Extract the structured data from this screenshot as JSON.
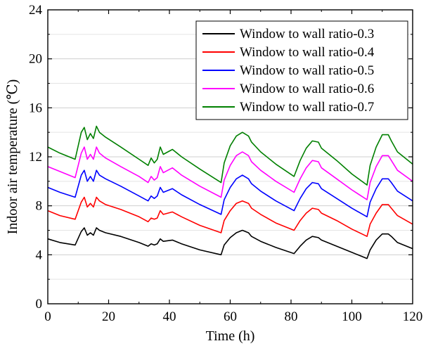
{
  "chart_data": {
    "type": "line",
    "xlabel": "Time (h)",
    "ylabel": "Indoor air temperature (℃)",
    "xlim": [
      0,
      120
    ],
    "ylim": [
      0,
      24
    ],
    "xticks": [
      "0",
      "20",
      "40",
      "60",
      "80",
      "100",
      "120"
    ],
    "yticks": [
      "0",
      "4",
      "8",
      "12",
      "16",
      "20",
      "24"
    ],
    "minor_gridlines": true,
    "legend_position": "top-right",
    "series": [
      {
        "name": "Window to wall ratio-0.3",
        "color": "#000000",
        "points": [
          [
            0,
            5.3
          ],
          [
            4,
            5.0
          ],
          [
            9,
            4.8
          ],
          [
            11,
            5.9
          ],
          [
            12,
            6.2
          ],
          [
            13,
            5.6
          ],
          [
            14,
            5.8
          ],
          [
            15,
            5.6
          ],
          [
            16,
            6.2
          ],
          [
            17,
            6.0
          ],
          [
            19,
            5.8
          ],
          [
            24,
            5.5
          ],
          [
            30,
            5.0
          ],
          [
            33,
            4.7
          ],
          [
            34,
            4.9
          ],
          [
            35,
            4.8
          ],
          [
            36,
            4.9
          ],
          [
            37,
            5.3
          ],
          [
            38,
            5.1
          ],
          [
            41,
            5.2
          ],
          [
            44,
            4.9
          ],
          [
            50,
            4.4
          ],
          [
            57,
            4.0
          ],
          [
            58,
            4.8
          ],
          [
            60,
            5.4
          ],
          [
            62,
            5.8
          ],
          [
            64,
            6.0
          ],
          [
            66,
            5.8
          ],
          [
            67,
            5.5
          ],
          [
            70,
            5.1
          ],
          [
            75,
            4.6
          ],
          [
            81,
            4.1
          ],
          [
            83,
            4.7
          ],
          [
            85,
            5.2
          ],
          [
            87,
            5.5
          ],
          [
            89,
            5.4
          ],
          [
            90,
            5.2
          ],
          [
            95,
            4.7
          ],
          [
            100,
            4.2
          ],
          [
            105,
            3.7
          ],
          [
            106,
            4.4
          ],
          [
            108,
            5.2
          ],
          [
            110,
            5.7
          ],
          [
            112,
            5.7
          ],
          [
            113,
            5.5
          ],
          [
            115,
            5.0
          ],
          [
            120,
            4.5
          ]
        ]
      },
      {
        "name": "Window to wall ratio-0.4",
        "color": "#ff0000",
        "points": [
          [
            0,
            7.6
          ],
          [
            4,
            7.2
          ],
          [
            9,
            6.9
          ],
          [
            11,
            8.3
          ],
          [
            12,
            8.7
          ],
          [
            13,
            7.9
          ],
          [
            14,
            8.2
          ],
          [
            15,
            7.9
          ],
          [
            16,
            8.7
          ],
          [
            17,
            8.4
          ],
          [
            19,
            8.1
          ],
          [
            24,
            7.7
          ],
          [
            30,
            7.1
          ],
          [
            33,
            6.7
          ],
          [
            34,
            7.0
          ],
          [
            35,
            6.9
          ],
          [
            36,
            7.0
          ],
          [
            37,
            7.6
          ],
          [
            38,
            7.3
          ],
          [
            41,
            7.5
          ],
          [
            44,
            7.1
          ],
          [
            50,
            6.4
          ],
          [
            57,
            5.8
          ],
          [
            58,
            6.8
          ],
          [
            60,
            7.6
          ],
          [
            62,
            8.2
          ],
          [
            64,
            8.4
          ],
          [
            66,
            8.2
          ],
          [
            67,
            7.8
          ],
          [
            70,
            7.3
          ],
          [
            75,
            6.6
          ],
          [
            81,
            6.0
          ],
          [
            83,
            6.8
          ],
          [
            85,
            7.4
          ],
          [
            87,
            7.8
          ],
          [
            89,
            7.7
          ],
          [
            90,
            7.4
          ],
          [
            95,
            6.8
          ],
          [
            100,
            6.1
          ],
          [
            105,
            5.5
          ],
          [
            106,
            6.5
          ],
          [
            108,
            7.4
          ],
          [
            110,
            8.1
          ],
          [
            112,
            8.1
          ],
          [
            113,
            7.8
          ],
          [
            115,
            7.2
          ],
          [
            120,
            6.5
          ]
        ]
      },
      {
        "name": "Window to wall ratio-0.5",
        "color": "#0000ff",
        "points": [
          [
            0,
            9.5
          ],
          [
            4,
            9.1
          ],
          [
            9,
            8.7
          ],
          [
            11,
            10.5
          ],
          [
            12,
            10.9
          ],
          [
            13,
            10.0
          ],
          [
            14,
            10.4
          ],
          [
            15,
            10.0
          ],
          [
            16,
            10.9
          ],
          [
            17,
            10.5
          ],
          [
            19,
            10.2
          ],
          [
            24,
            9.6
          ],
          [
            30,
            8.8
          ],
          [
            33,
            8.4
          ],
          [
            34,
            8.8
          ],
          [
            35,
            8.6
          ],
          [
            36,
            8.8
          ],
          [
            37,
            9.5
          ],
          [
            38,
            9.1
          ],
          [
            41,
            9.4
          ],
          [
            44,
            8.9
          ],
          [
            50,
            8.1
          ],
          [
            57,
            7.3
          ],
          [
            58,
            8.5
          ],
          [
            60,
            9.5
          ],
          [
            62,
            10.2
          ],
          [
            64,
            10.5
          ],
          [
            66,
            10.2
          ],
          [
            67,
            9.8
          ],
          [
            70,
            9.2
          ],
          [
            75,
            8.4
          ],
          [
            81,
            7.6
          ],
          [
            83,
            8.6
          ],
          [
            85,
            9.4
          ],
          [
            87,
            9.9
          ],
          [
            89,
            9.8
          ],
          [
            90,
            9.4
          ],
          [
            95,
            8.6
          ],
          [
            100,
            7.8
          ],
          [
            105,
            7.1
          ],
          [
            106,
            8.3
          ],
          [
            108,
            9.4
          ],
          [
            110,
            10.2
          ],
          [
            112,
            10.2
          ],
          [
            113,
            9.9
          ],
          [
            115,
            9.2
          ],
          [
            120,
            8.4
          ]
        ]
      },
      {
        "name": "Window to wall ratio-0.6",
        "color": "#ff00ff",
        "points": [
          [
            0,
            11.2
          ],
          [
            4,
            10.8
          ],
          [
            9,
            10.3
          ],
          [
            11,
            12.3
          ],
          [
            12,
            12.8
          ],
          [
            13,
            11.8
          ],
          [
            14,
            12.2
          ],
          [
            15,
            11.8
          ],
          [
            16,
            12.8
          ],
          [
            17,
            12.3
          ],
          [
            19,
            11.9
          ],
          [
            24,
            11.2
          ],
          [
            30,
            10.4
          ],
          [
            33,
            9.9
          ],
          [
            34,
            10.4
          ],
          [
            35,
            10.1
          ],
          [
            36,
            10.3
          ],
          [
            37,
            11.2
          ],
          [
            38,
            10.7
          ],
          [
            41,
            11.1
          ],
          [
            44,
            10.5
          ],
          [
            50,
            9.6
          ],
          [
            57,
            8.7
          ],
          [
            58,
            10.1
          ],
          [
            60,
            11.3
          ],
          [
            62,
            12.1
          ],
          [
            64,
            12.4
          ],
          [
            66,
            12.1
          ],
          [
            67,
            11.6
          ],
          [
            70,
            10.9
          ],
          [
            75,
            10.0
          ],
          [
            81,
            9.1
          ],
          [
            83,
            10.2
          ],
          [
            85,
            11.1
          ],
          [
            87,
            11.7
          ],
          [
            89,
            11.6
          ],
          [
            90,
            11.1
          ],
          [
            95,
            10.2
          ],
          [
            100,
            9.3
          ],
          [
            105,
            8.5
          ],
          [
            106,
            9.9
          ],
          [
            108,
            11.2
          ],
          [
            110,
            12.1
          ],
          [
            112,
            12.1
          ],
          [
            113,
            11.7
          ],
          [
            115,
            10.9
          ],
          [
            120,
            10.0
          ]
        ]
      },
      {
        "name": "Window to wall ratio-0.7",
        "color": "#008000",
        "points": [
          [
            0,
            12.8
          ],
          [
            4,
            12.3
          ],
          [
            9,
            11.8
          ],
          [
            11,
            14.0
          ],
          [
            12,
            14.4
          ],
          [
            13,
            13.4
          ],
          [
            14,
            13.9
          ],
          [
            15,
            13.5
          ],
          [
            16,
            14.5
          ],
          [
            17,
            14.0
          ],
          [
            19,
            13.6
          ],
          [
            24,
            12.8
          ],
          [
            30,
            11.8
          ],
          [
            33,
            11.3
          ],
          [
            34,
            11.9
          ],
          [
            35,
            11.5
          ],
          [
            36,
            11.8
          ],
          [
            37,
            12.8
          ],
          [
            38,
            12.2
          ],
          [
            41,
            12.6
          ],
          [
            44,
            12.0
          ],
          [
            50,
            11.0
          ],
          [
            57,
            9.9
          ],
          [
            58,
            11.5
          ],
          [
            60,
            12.9
          ],
          [
            62,
            13.7
          ],
          [
            64,
            14.0
          ],
          [
            66,
            13.7
          ],
          [
            67,
            13.2
          ],
          [
            70,
            12.4
          ],
          [
            75,
            11.4
          ],
          [
            81,
            10.4
          ],
          [
            83,
            11.7
          ],
          [
            85,
            12.7
          ],
          [
            87,
            13.3
          ],
          [
            89,
            13.2
          ],
          [
            90,
            12.7
          ],
          [
            95,
            11.7
          ],
          [
            100,
            10.6
          ],
          [
            105,
            9.7
          ],
          [
            106,
            11.3
          ],
          [
            108,
            12.8
          ],
          [
            110,
            13.8
          ],
          [
            112,
            13.8
          ],
          [
            113,
            13.3
          ],
          [
            115,
            12.4
          ],
          [
            120,
            11.4
          ]
        ]
      }
    ]
  }
}
